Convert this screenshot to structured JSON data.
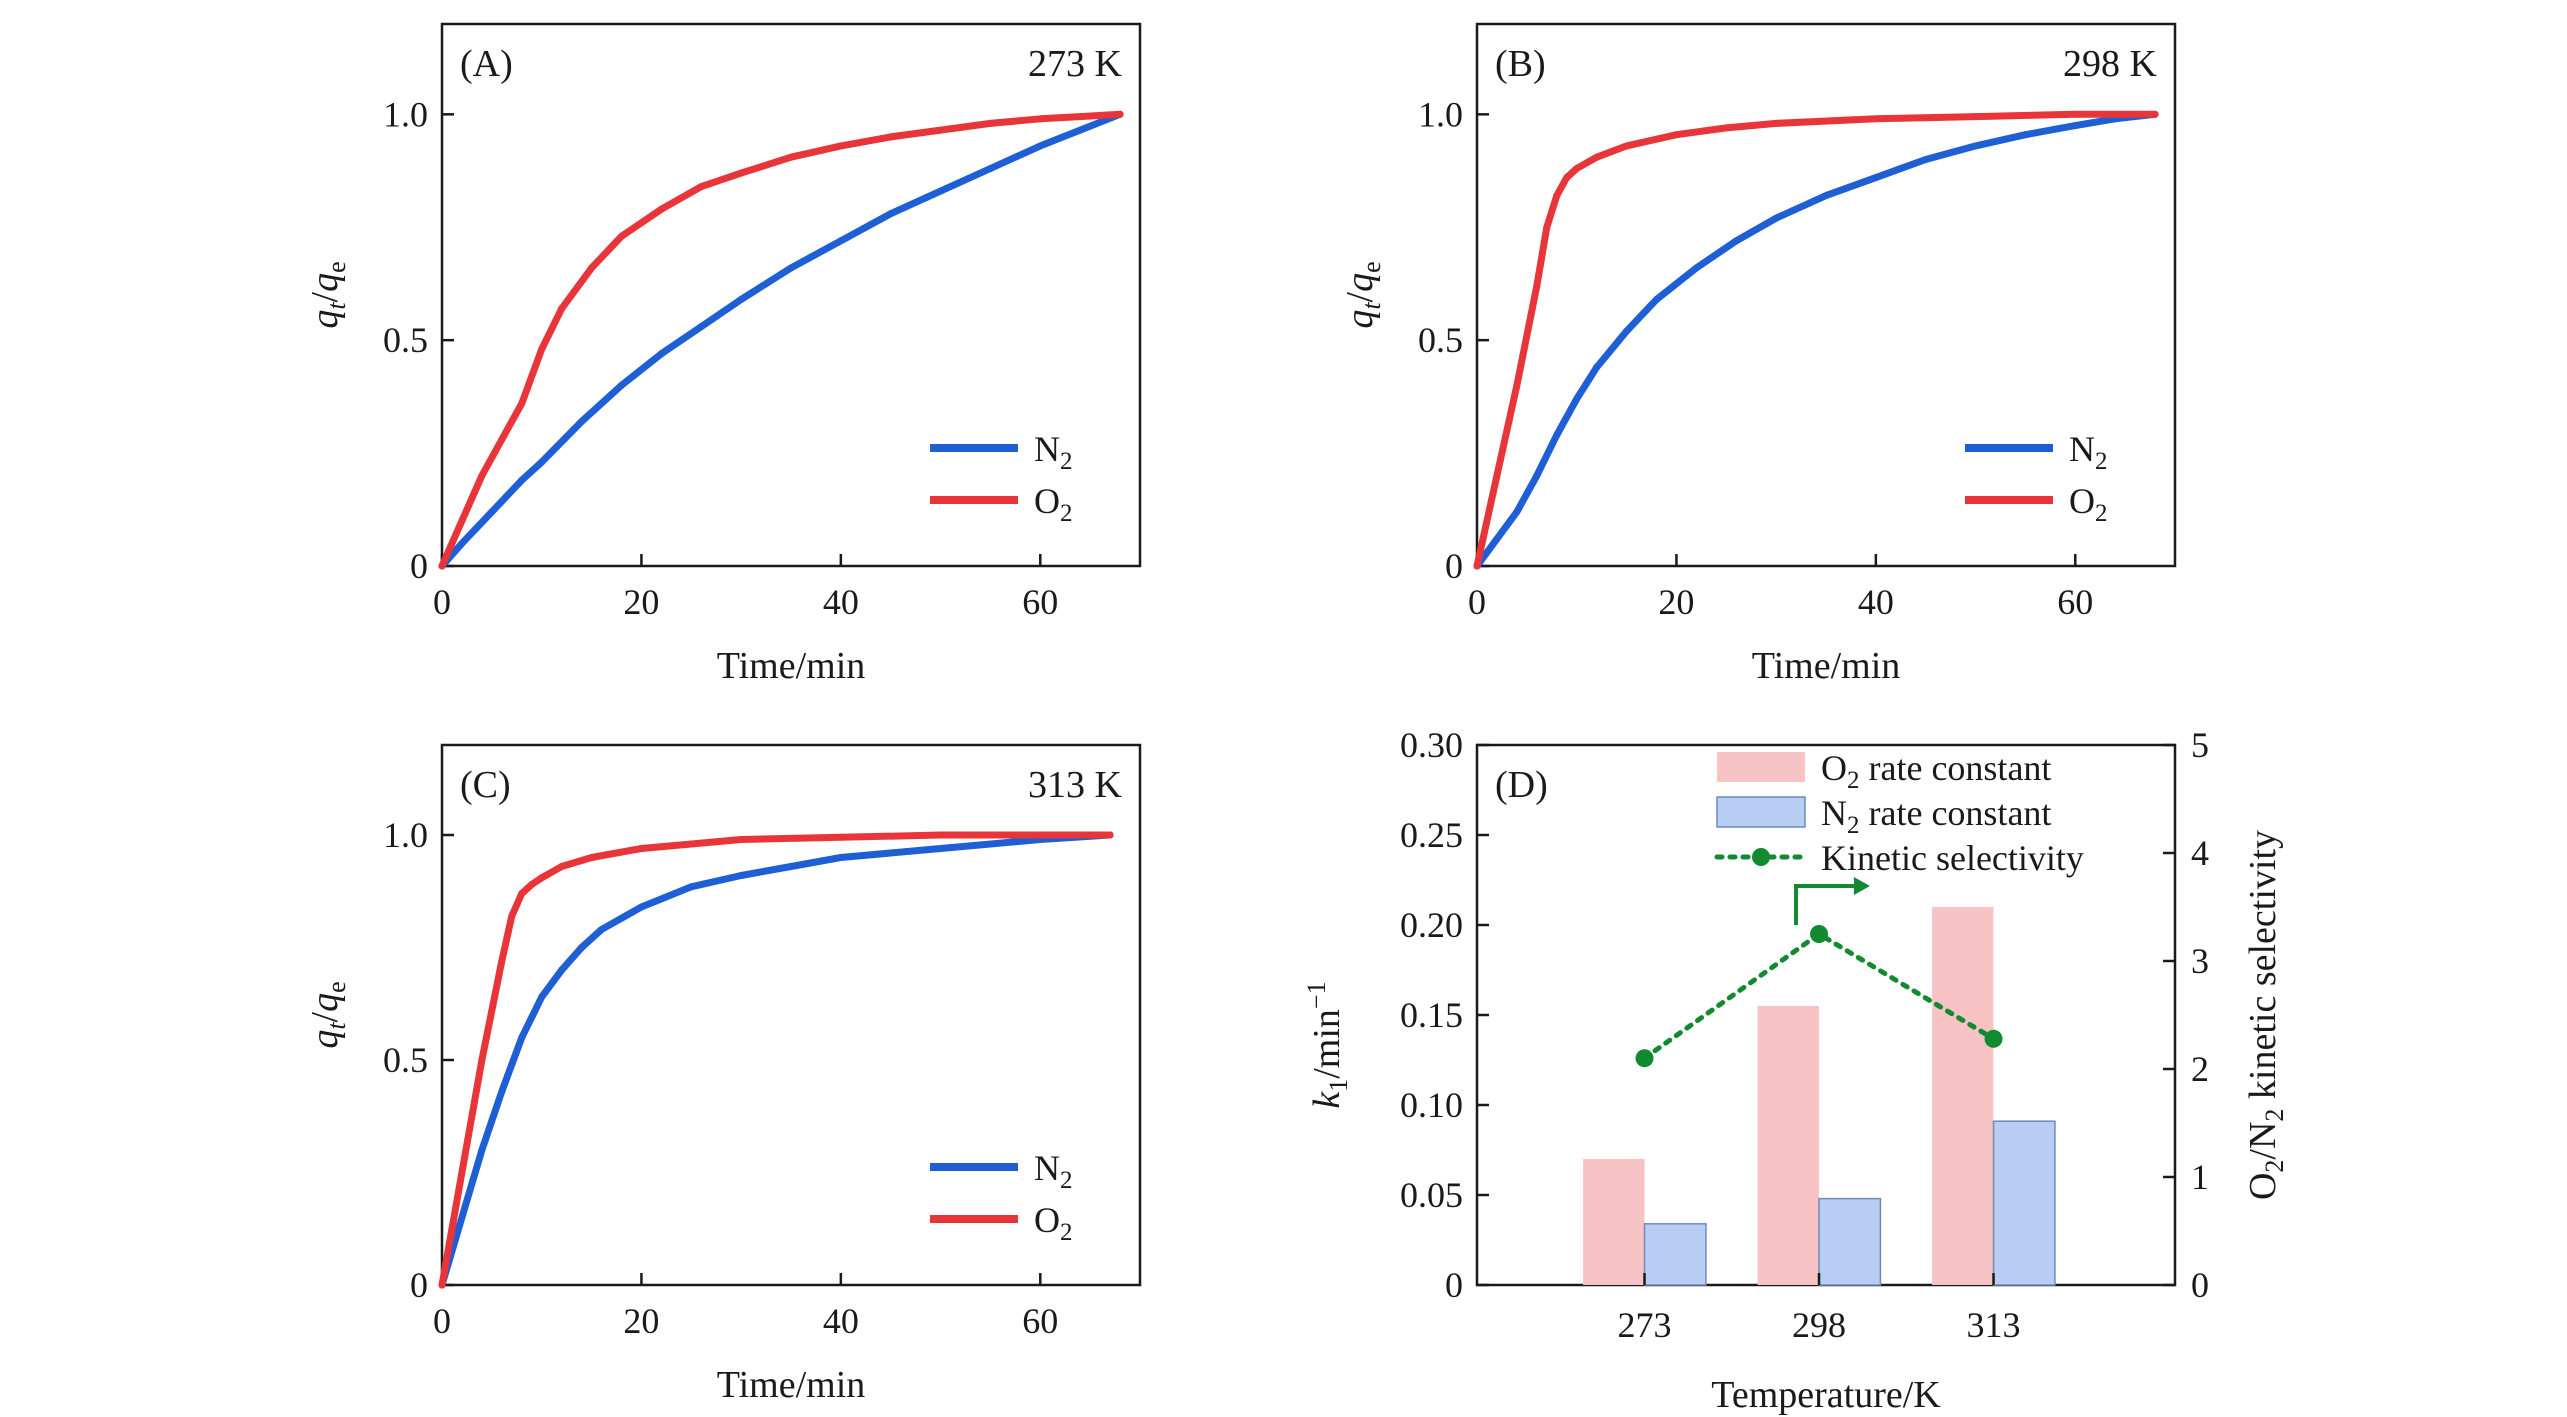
{
  "colors": {
    "n2": "#1f5fd6",
    "o2": "#e8353a",
    "o2_bar": "#f8c3c4",
    "n2_bar": "#b7cdf2",
    "sel": "#128a2f",
    "axis": "#1a1a1a"
  },
  "chart_data": [
    {
      "type": "line",
      "panel_label": "(A)",
      "temperature_label": "273 K",
      "xlabel": "Time/min",
      "ylabel": {
        "q": "q",
        "t": "t",
        "slash": "/",
        "e": "e"
      },
      "xlim": [
        0,
        70
      ],
      "ylim": [
        0,
        1.2
      ],
      "xticks": [
        "0",
        "20",
        "40",
        "60"
      ],
      "yticks": [
        "0",
        "0.5",
        "1.0"
      ],
      "series": [
        {
          "name": "N2",
          "label_main": "N",
          "label_sub": "2",
          "color": "#1f5fd6",
          "x": [
            0,
            2,
            5,
            8,
            10,
            14,
            18,
            22,
            26,
            30,
            35,
            40,
            45,
            50,
            55,
            60,
            64,
            68
          ],
          "y": [
            0,
            0.05,
            0.12,
            0.19,
            0.23,
            0.32,
            0.4,
            0.47,
            0.53,
            0.59,
            0.66,
            0.72,
            0.78,
            0.83,
            0.88,
            0.93,
            0.965,
            1.0
          ]
        },
        {
          "name": "O2",
          "label_main": "O",
          "label_sub": "2",
          "color": "#e8353a",
          "x": [
            0,
            2,
            4,
            6,
            8,
            10,
            12,
            15,
            18,
            22,
            26,
            30,
            35,
            40,
            45,
            50,
            55,
            60,
            64,
            68
          ],
          "y": [
            0,
            0.1,
            0.2,
            0.28,
            0.36,
            0.48,
            0.57,
            0.66,
            0.73,
            0.79,
            0.84,
            0.87,
            0.905,
            0.93,
            0.95,
            0.965,
            0.98,
            0.99,
            0.995,
            1.0
          ]
        }
      ]
    },
    {
      "type": "line",
      "panel_label": "(B)",
      "temperature_label": "298 K",
      "xlabel": "Time/min",
      "ylabel": {
        "q": "q",
        "t": "t",
        "slash": "/",
        "e": "e"
      },
      "xlim": [
        0,
        70
      ],
      "ylim": [
        0,
        1.2
      ],
      "xticks": [
        "0",
        "20",
        "40",
        "60"
      ],
      "yticks": [
        "0",
        "0.5",
        "1.0"
      ],
      "series": [
        {
          "name": "N2",
          "label_main": "N",
          "label_sub": "2",
          "color": "#1f5fd6",
          "x": [
            0,
            2,
            4,
            6,
            8,
            10,
            12,
            15,
            18,
            22,
            26,
            30,
            35,
            40,
            45,
            50,
            55,
            60,
            64,
            68
          ],
          "y": [
            0,
            0.06,
            0.12,
            0.2,
            0.29,
            0.37,
            0.44,
            0.52,
            0.59,
            0.66,
            0.72,
            0.77,
            0.82,
            0.86,
            0.9,
            0.93,
            0.955,
            0.975,
            0.99,
            1.0
          ]
        },
        {
          "name": "O2",
          "label_main": "O",
          "label_sub": "2",
          "color": "#e8353a",
          "x": [
            0,
            2,
            4,
            6,
            7,
            8,
            9,
            10,
            12,
            15,
            20,
            25,
            30,
            40,
            50,
            60,
            68
          ],
          "y": [
            0,
            0.2,
            0.4,
            0.62,
            0.75,
            0.82,
            0.86,
            0.88,
            0.905,
            0.93,
            0.955,
            0.97,
            0.98,
            0.99,
            0.995,
            1.0,
            1.0
          ]
        }
      ]
    },
    {
      "type": "line",
      "panel_label": "(C)",
      "temperature_label": "313 K",
      "xlabel": "Time/min",
      "ylabel": {
        "q": "q",
        "t": "t",
        "slash": "/",
        "e": "e"
      },
      "xlim": [
        0,
        70
      ],
      "ylim": [
        0,
        1.2
      ],
      "xticks": [
        "0",
        "20",
        "40",
        "60"
      ],
      "yticks": [
        "0",
        "0.5",
        "1.0"
      ],
      "series": [
        {
          "name": "N2",
          "label_main": "N",
          "label_sub": "2",
          "color": "#1f5fd6",
          "x": [
            0,
            2,
            4,
            6,
            8,
            10,
            12,
            14,
            16,
            20,
            25,
            30,
            35,
            40,
            50,
            60,
            67
          ],
          "y": [
            0,
            0.15,
            0.3,
            0.43,
            0.55,
            0.64,
            0.7,
            0.75,
            0.79,
            0.84,
            0.885,
            0.91,
            0.93,
            0.95,
            0.97,
            0.99,
            1.0
          ]
        },
        {
          "name": "O2",
          "label_main": "O",
          "label_sub": "2",
          "color": "#e8353a",
          "x": [
            0,
            2,
            4,
            6,
            7,
            8,
            9,
            10,
            12,
            15,
            20,
            25,
            30,
            40,
            50,
            60,
            67
          ],
          "y": [
            0,
            0.25,
            0.5,
            0.72,
            0.82,
            0.87,
            0.89,
            0.905,
            0.93,
            0.95,
            0.97,
            0.98,
            0.99,
            0.995,
            1.0,
            1.0,
            1.0
          ]
        }
      ]
    },
    {
      "type": "bar",
      "panel_label": "(D)",
      "xlabel": "Temperature/K",
      "ylabel_left": {
        "k": "k",
        "sub": "1",
        "rest": "/min",
        "sup": "−1"
      },
      "ylabel_right": {
        "p1": "O",
        "s1": "2",
        "p2": "/N",
        "s2": "2",
        "p3": " kinetic selectivity"
      },
      "categories": [
        "273",
        "298",
        "313"
      ],
      "ylim": [
        0,
        0.3
      ],
      "yticks": [
        "0",
        "0.05",
        "0.10",
        "0.15",
        "0.20",
        "0.25",
        "0.30"
      ],
      "ylim_right": [
        0,
        5
      ],
      "yticks_right": [
        "0",
        "1",
        "2",
        "3",
        "4",
        "5"
      ],
      "series": [
        {
          "name": "O2 rate constant",
          "label_main": "O",
          "label_sub": "2",
          "label_rest": " rate constant",
          "color": "#f8c3c4",
          "values": [
            0.07,
            0.155,
            0.21
          ]
        },
        {
          "name": "N2 rate constant",
          "label_main": "N",
          "label_sub": "2",
          "label_rest": " rate constant",
          "color": "#b7cdf2",
          "values": [
            0.034,
            0.048,
            0.091
          ]
        },
        {
          "name": "Kinetic selectivity",
          "label_main": "Kinetic selectivity",
          "color": "#128a2f",
          "axis": "right",
          "values": [
            2.1,
            3.25,
            2.28
          ]
        }
      ]
    }
  ]
}
